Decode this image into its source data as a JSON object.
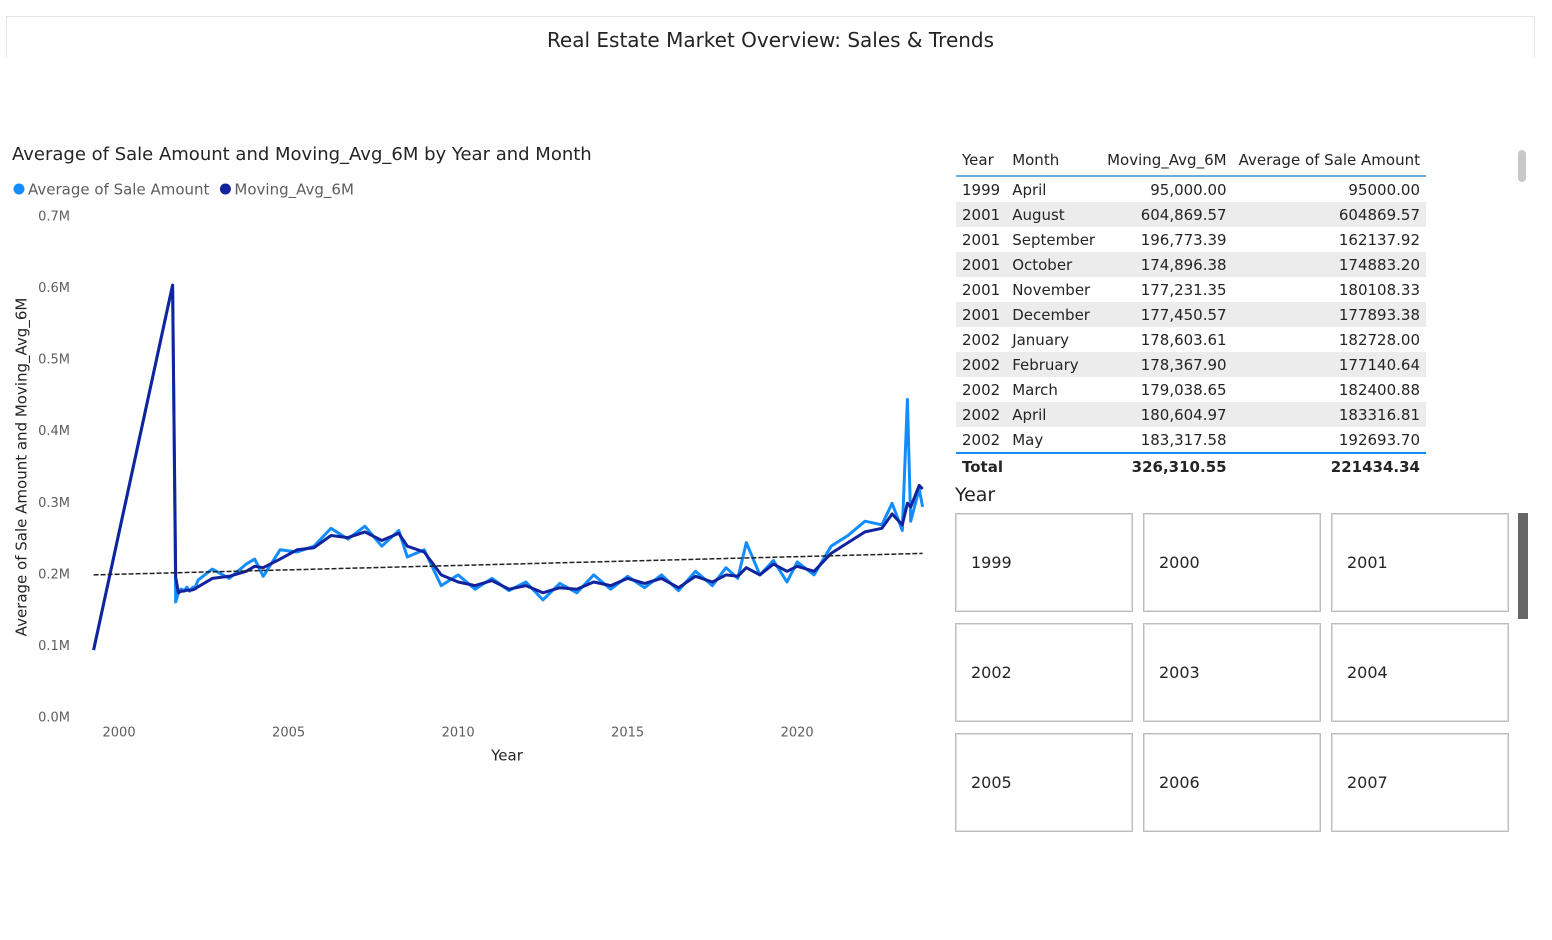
{
  "header": {
    "title": "Real Estate Market Overview: Sales & Trends"
  },
  "chart_data": {
    "type": "line",
    "title": "Average of Sale Amount and Moving_Avg_6M by Year and Month",
    "x_label": "Year",
    "y_label": "Average of Sale Amount and Moving_Avg_6M",
    "x": [
      1999.25,
      2001.58,
      2001.67,
      2001.75,
      2001.83,
      2001.92,
      2002.0,
      2002.08,
      2002.17,
      2002.25,
      2002.33,
      2002.75,
      2003.25,
      2003.75,
      2004.0,
      2004.25,
      2004.75,
      2005.25,
      2005.75,
      2006.25,
      2006.75,
      2007.25,
      2007.75,
      2008.25,
      2008.5,
      2009.0,
      2009.5,
      2010.0,
      2010.5,
      2011.0,
      2011.5,
      2012.0,
      2012.5,
      2013.0,
      2013.5,
      2014.0,
      2014.5,
      2015.0,
      2015.5,
      2016.0,
      2016.5,
      2017.0,
      2017.5,
      2017.9,
      2018.25,
      2018.5,
      2018.9,
      2019.3,
      2019.7,
      2020.0,
      2020.5,
      2021.0,
      2021.5,
      2022.0,
      2022.5,
      2022.8,
      2023.1,
      2023.25,
      2023.35,
      2023.6,
      2023.7
    ],
    "series": [
      {
        "name": "Average of Sale Amount",
        "color": "#118dff",
        "values": [
          95000,
          604870,
          162138,
          174883,
          180108,
          177893,
          182728,
          177141,
          182401,
          183317,
          192694,
          208000,
          195000,
          215000,
          222000,
          198000,
          235000,
          232000,
          240000,
          265000,
          250000,
          268000,
          240000,
          262000,
          225000,
          235000,
          185000,
          200000,
          180000,
          195000,
          178000,
          190000,
          165000,
          188000,
          175000,
          200000,
          180000,
          198000,
          182000,
          200000,
          178000,
          205000,
          185000,
          210000,
          195000,
          245000,
          200000,
          220000,
          190000,
          218000,
          200000,
          240000,
          255000,
          275000,
          270000,
          300000,
          262000,
          445000,
          275000,
          320000,
          295000
        ]
      },
      {
        "name": "Moving_Avg_6M",
        "color": "#12239e",
        "values": [
          95000,
          604870,
          196773,
          174896,
          177231,
          177451,
          178604,
          178368,
          179039,
          180605,
          183318,
          195000,
          198000,
          205000,
          212000,
          210000,
          222000,
          235000,
          238000,
          255000,
          252000,
          260000,
          248000,
          258000,
          240000,
          232000,
          200000,
          190000,
          185000,
          192000,
          180000,
          185000,
          175000,
          182000,
          180000,
          190000,
          185000,
          195000,
          188000,
          195000,
          182000,
          198000,
          190000,
          200000,
          198000,
          210000,
          200000,
          215000,
          205000,
          212000,
          205000,
          230000,
          245000,
          260000,
          265000,
          285000,
          270000,
          300000,
          295000,
          325000,
          320000
        ]
      }
    ],
    "trendline": {
      "x": [
        1999.25,
        2023.7
      ],
      "values": [
        200000,
        230000
      ],
      "color": "#222222"
    },
    "xlim": [
      1998.7,
      2023.8
    ],
    "xticks": [
      2000,
      2005,
      2010,
      2015,
      2020
    ],
    "ylim": [
      0,
      700000
    ],
    "yticks": [
      {
        "value": 0,
        "label": "0.0M"
      },
      {
        "value": 100000,
        "label": "0.1M"
      },
      {
        "value": 200000,
        "label": "0.2M"
      },
      {
        "value": 300000,
        "label": "0.3M"
      },
      {
        "value": 400000,
        "label": "0.4M"
      },
      {
        "value": 500000,
        "label": "0.5M"
      },
      {
        "value": 600000,
        "label": "0.6M"
      },
      {
        "value": 700000,
        "label": "0.7M"
      }
    ],
    "grid": false
  },
  "table": {
    "columns": [
      "Year",
      "Month",
      "Moving_Avg_6M",
      "Average of Sale Amount"
    ],
    "rows": [
      [
        "1999",
        "April",
        "95,000.00",
        "95000.00"
      ],
      [
        "2001",
        "August",
        "604,869.57",
        "604869.57"
      ],
      [
        "2001",
        "September",
        "196,773.39",
        "162137.92"
      ],
      [
        "2001",
        "October",
        "174,896.38",
        "174883.20"
      ],
      [
        "2001",
        "November",
        "177,231.35",
        "180108.33"
      ],
      [
        "2001",
        "December",
        "177,450.57",
        "177893.38"
      ],
      [
        "2002",
        "January",
        "178,603.61",
        "182728.00"
      ],
      [
        "2002",
        "February",
        "178,367.90",
        "177140.64"
      ],
      [
        "2002",
        "March",
        "179,038.65",
        "182400.88"
      ],
      [
        "2002",
        "April",
        "180,604.97",
        "183316.81"
      ],
      [
        "2002",
        "May",
        "183,317.58",
        "192693.70"
      ]
    ],
    "total": [
      "Total",
      "326,310.55",
      "221434.34"
    ]
  },
  "slicer": {
    "title": "Year",
    "options": [
      "1999",
      "2000",
      "2001",
      "2002",
      "2003",
      "2004",
      "2005",
      "2006",
      "2007"
    ]
  }
}
